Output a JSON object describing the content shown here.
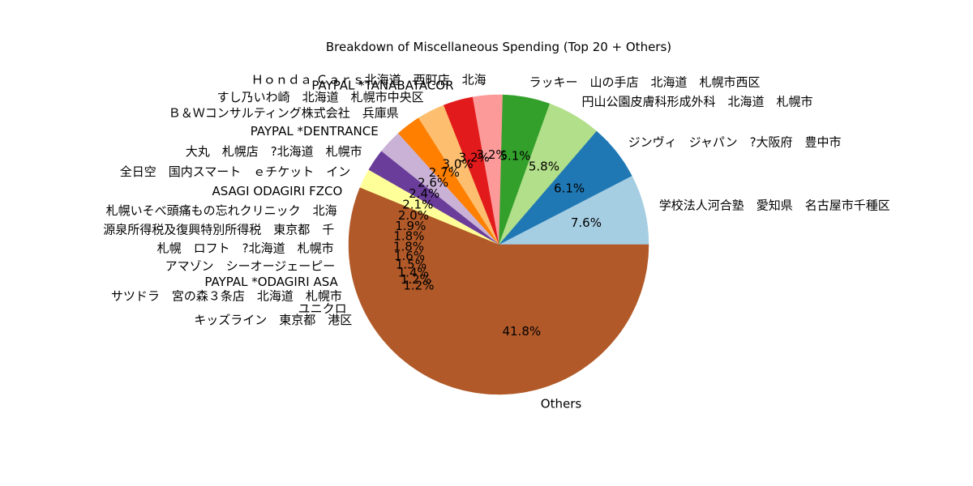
{
  "chart_data": {
    "type": "pie",
    "title": "Breakdown of Miscellaneous Spending (Top 20 + Others)",
    "start_angle_deg": 0,
    "direction": "counterclockwise",
    "slices": [
      {
        "label": "学校法人河合塾　愛知県　名古屋市千種区",
        "value": 7.6,
        "pct_label": "7.6%",
        "color": "#a6cee3"
      },
      {
        "label": "ジンヴィ　ジャパン　?大阪府　豊中市",
        "value": 6.1,
        "pct_label": "6.1%",
        "color": "#1f78b4"
      },
      {
        "label": "円山公園皮膚科形成外科　北海道　札幌市",
        "value": 5.8,
        "pct_label": "5.8%",
        "color": "#b2df8a"
      },
      {
        "label": "ラッキー　山の手店　北海道　札幌市西区",
        "value": 5.1,
        "pct_label": "5.1%",
        "color": "#33a02c"
      },
      {
        "label": "Ｈｏｎｄａ Ｃａｒｓ北海道　西町店　北海",
        "value": 3.2,
        "pct_label": "3.2%",
        "color": "#fb9a99"
      },
      {
        "label": "PAYPAL *TANABATACOR",
        "value": 3.2,
        "pct_label": "3.2%",
        "color": "#e31a1c"
      },
      {
        "label": "すし乃いわ崎　北海道　札幌市中央区",
        "value": 3.0,
        "pct_label": "3.0%",
        "color": "#fdbf6f"
      },
      {
        "label": "Ｂ＆Ｗコンサルティング株式会社　兵庫県",
        "value": 2.7,
        "pct_label": "2.7%",
        "color": "#ff7f00"
      },
      {
        "label": "PAYPAL *DENTRANCE",
        "value": 2.6,
        "pct_label": "2.6%",
        "color": "#cab2d6"
      },
      {
        "label": "大丸　札幌店　?北海道　札幌市",
        "value": 2.4,
        "pct_label": "2.4%",
        "color": "#6a3d9a"
      },
      {
        "label": "全日空　国内スマート　ｅチケット　イン",
        "value": 2.1,
        "pct_label": "2.1%",
        "color": "#ffff99"
      },
      {
        "label": "ASAGI ODAGIRI FZCO",
        "value": 2.0,
        "pct_label": "2.0%",
        "color": "#b15928"
      },
      {
        "label": "札幌いそべ頭痛もの忘れクリニック　北海",
        "value": 1.9,
        "pct_label": "1.9%",
        "color": "#b15928"
      },
      {
        "label": "源泉所得税及復興特別所得税　東京都　千",
        "value": 1.8,
        "pct_label": "1.8%",
        "color": "#b15928"
      },
      {
        "label": "札幌　ロフト　?北海道　札幌市",
        "value": 1.8,
        "pct_label": "1.8%",
        "color": "#b15928"
      },
      {
        "label": "アマゾン　シーオージェーピー",
        "value": 1.6,
        "pct_label": "1.6%",
        "color": "#b15928"
      },
      {
        "label": "PAYPAL *ODAGIRI ASA",
        "value": 1.5,
        "pct_label": "1.5%",
        "color": "#b15928"
      },
      {
        "label": "サツドラ　宮の森３条店　北海道　札幌市",
        "value": 1.4,
        "pct_label": "1.4%",
        "color": "#b15928"
      },
      {
        "label": "ユニクロ",
        "value": 1.2,
        "pct_label": "1.2%",
        "color": "#b15928"
      },
      {
        "label": "キッズライン　東京都　港区",
        "value": 1.2,
        "pct_label": "1.2%",
        "color": "#b15928"
      },
      {
        "label": "Others",
        "value": 41.8,
        "pct_label": "41.8%",
        "color": "#b15928"
      }
    ]
  }
}
